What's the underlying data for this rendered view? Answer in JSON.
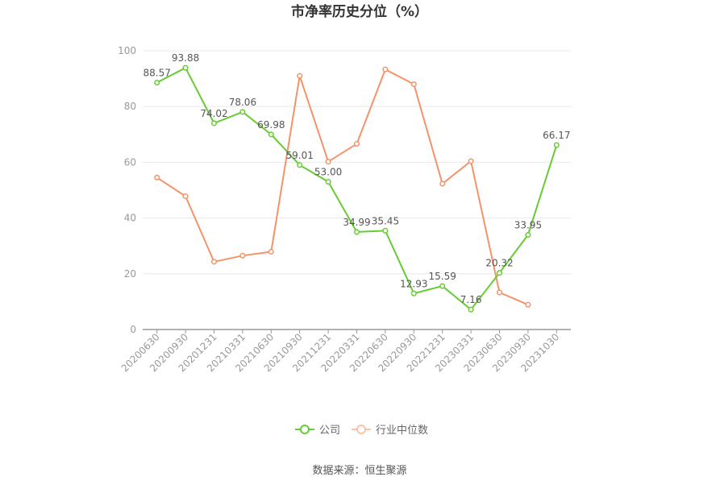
{
  "chart_data": {
    "type": "line",
    "title": "市净率历史分位（%）",
    "x": [
      "20200630",
      "20200930",
      "20201231",
      "20210331",
      "20210630",
      "20210930",
      "20211231",
      "20220331",
      "20220630",
      "20220930",
      "20221231",
      "20230331",
      "20230630",
      "20230930",
      "20231030"
    ],
    "ylim": [
      0,
      100
    ],
    "yticks": [
      0,
      20,
      40,
      60,
      80,
      100
    ],
    "grid": true,
    "legend_position": "bottom",
    "series": [
      {
        "name": "公司",
        "color": "#66cc33",
        "values": [
          88.57,
          93.88,
          74.02,
          78.06,
          69.98,
          59.01,
          53.0,
          34.99,
          35.45,
          12.93,
          15.59,
          7.16,
          20.32,
          33.95,
          66.17
        ],
        "labels": [
          "88.57",
          "93.88",
          "74.02",
          "78.06",
          "69.98",
          "59.01",
          "53.00",
          "34.99",
          "35.45",
          "12.93",
          "15.59",
          "7.16",
          "20.32",
          "33.95",
          "66.17"
        ]
      },
      {
        "name": "行业中位数",
        "color": "#f4936a",
        "values": [
          54.5,
          47.8,
          24.3,
          26.5,
          27.9,
          91.0,
          60.2,
          66.6,
          93.3,
          88.0,
          52.3,
          60.4,
          13.3,
          8.9,
          null
        ]
      }
    ],
    "source": "数据来源：恒生聚源"
  }
}
